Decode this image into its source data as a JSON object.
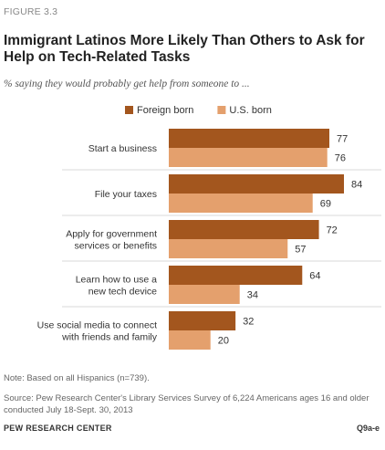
{
  "figure_label": "FIGURE 3.3",
  "title": "Immigrant Latinos More Likely Than Others to Ask for Help on Tech-Related Tasks",
  "subtitle": "% saying they would probably get help from someone to ...",
  "note": "Note: Based on all Hispanics (n=739).",
  "source": "Source: Pew Research Center's Library Services Survey of 6,224 Americans ages 16 and older conducted July 18-Sept. 30, 2013",
  "brand": "PEW RESEARCH CENTER",
  "code": "Q9a-e",
  "colors": {
    "foreign": "#a3561e",
    "us": "#e4a06d",
    "divider": "#d9d9d9"
  },
  "chart_data": {
    "type": "bar",
    "orientation": "horizontal",
    "categories": [
      [
        "Start a business"
      ],
      [
        "File your taxes"
      ],
      [
        "Apply for government",
        "services or benefits"
      ],
      [
        "Learn how to use a",
        "new tech device"
      ],
      [
        "Use social media to connect",
        "with friends and family"
      ]
    ],
    "series": [
      {
        "name": "Foreign born",
        "values": [
          77,
          84,
          72,
          64,
          32
        ]
      },
      {
        "name": "U.S. born",
        "values": [
          76,
          69,
          57,
          34,
          20
        ]
      }
    ],
    "xlim": [
      0,
      100
    ],
    "legend": "top",
    "grid": false
  }
}
